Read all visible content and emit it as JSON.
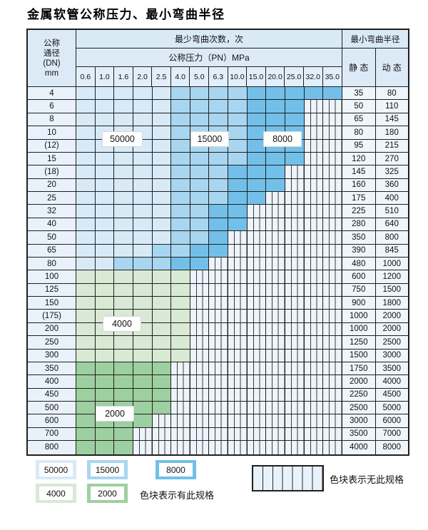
{
  "title": "金属软管公称压力、最小弯曲半径",
  "table": {
    "dn_header_lines": [
      "公称",
      "通径",
      "(DN)",
      "mm"
    ],
    "cycles_header": "最少弯曲次数，次",
    "pressure_header": "公称压力（PN）MPa",
    "pressure_columns": [
      "0.6",
      "1.0",
      "1.6",
      "2.0",
      "2.5",
      "4.0",
      "5.0",
      "6.3",
      "10.0",
      "15.0",
      "20.0",
      "25.0",
      "32.0",
      "35.0"
    ],
    "radius_header": "最小弯曲半径",
    "static_label": "静 态",
    "dynamic_label": "动 态",
    "rows": [
      {
        "dn": "4",
        "cells": "LLLLLMMMMDDDDD",
        "static": "35",
        "dynamic": "80"
      },
      {
        "dn": "6",
        "cells": "LLLLLMMMMDDDXX",
        "static": "50",
        "dynamic": "110"
      },
      {
        "dn": "8",
        "cells": "LLLLLMMMMDDDXX",
        "static": "65",
        "dynamic": "145"
      },
      {
        "dn": "10",
        "cells": "LLLLLMMMMDDDXX",
        "static": "80",
        "dynamic": "180"
      },
      {
        "dn": "(12)",
        "cells": "LLLLLMMMMDDDXX",
        "static": "95",
        "dynamic": "215"
      },
      {
        "dn": "15",
        "cells": "LLLLLMMMMDDDXX",
        "static": "120",
        "dynamic": "270"
      },
      {
        "dn": "(18)",
        "cells": "LLLLLMMMDDDXXX",
        "static": "145",
        "dynamic": "325"
      },
      {
        "dn": "20",
        "cells": "LLLLLMMMDDDXXX",
        "static": "160",
        "dynamic": "360"
      },
      {
        "dn": "25",
        "cells": "LLLLLMMMDDXXXX",
        "static": "175",
        "dynamic": "400"
      },
      {
        "dn": "32",
        "cells": "LLLLLMMDDXXXXX",
        "static": "225",
        "dynamic": "510"
      },
      {
        "dn": "40",
        "cells": "LLLLLMMDDXXXXX",
        "static": "280",
        "dynamic": "640"
      },
      {
        "dn": "50",
        "cells": "LLLLLMMDXXXXXX",
        "static": "350",
        "dynamic": "800"
      },
      {
        "dn": "65",
        "cells": "LLLLMMDDXXXXXX",
        "static": "390",
        "dynamic": "845"
      },
      {
        "dn": "80",
        "cells": "LLMMMDDXXXXXXX",
        "static": "480",
        "dynamic": "1000"
      },
      {
        "dn": "100",
        "cells": "GGGGGGXXXXXXXX",
        "static": "600",
        "dynamic": "1200"
      },
      {
        "dn": "125",
        "cells": "GGGGGGXXXXXXXX",
        "static": "750",
        "dynamic": "1500"
      },
      {
        "dn": "150",
        "cells": "GGGGGGXXXXXXXX",
        "static": "900",
        "dynamic": "1800"
      },
      {
        "dn": "(175)",
        "cells": "GGGGGGXXXXXXXX",
        "static": "1000",
        "dynamic": "2000"
      },
      {
        "dn": "200",
        "cells": "GGGGGGXXXXXXXX",
        "static": "1000",
        "dynamic": "2000"
      },
      {
        "dn": "250",
        "cells": "GGGGGGXXXXXXXX",
        "static": "1250",
        "dynamic": "2500"
      },
      {
        "dn": "300",
        "cells": "GGGGGGXXXXXXXX",
        "static": "1500",
        "dynamic": "3000"
      },
      {
        "dn": "350",
        "cells": "gggggXXXXXXXXX",
        "static": "1750",
        "dynamic": "3500"
      },
      {
        "dn": "400",
        "cells": "gggggXXXXXXXXX",
        "static": "2000",
        "dynamic": "4000"
      },
      {
        "dn": "450",
        "cells": "gggggXXXXXXXXX",
        "static": "2250",
        "dynamic": "4500"
      },
      {
        "dn": "500",
        "cells": "gggggXXXXXXXXX",
        "static": "2500",
        "dynamic": "5000"
      },
      {
        "dn": "600",
        "cells": "ggggXXXXXXXXXX",
        "static": "3000",
        "dynamic": "6000"
      },
      {
        "dn": "700",
        "cells": "gggXXXXXXXXXXX",
        "static": "3500",
        "dynamic": "7000"
      },
      {
        "dn": "800",
        "cells": "gggXXXXXXXXXXX",
        "static": "4000",
        "dynamic": "8000"
      }
    ]
  },
  "overlay_labels": [
    {
      "text": "50000"
    },
    {
      "text": "15000"
    },
    {
      "text": "8000"
    },
    {
      "text": "4000"
    },
    {
      "text": "2000"
    }
  ],
  "legend": {
    "items": [
      {
        "label": "50000",
        "color": "#d8eaf8"
      },
      {
        "label": "15000",
        "color": "#a8d6f0"
      },
      {
        "label": "8000",
        "color": "#72c0e9"
      },
      {
        "label": "4000",
        "color": "#d8e9d4"
      },
      {
        "label": "2000",
        "color": "#9dd0a0"
      }
    ],
    "has_spec_text": "色块表示有此规格",
    "no_spec_text": "色块表示无此规格"
  },
  "colors": {
    "cycles_50000": "#d8eaf8",
    "cycles_15000": "#a8d6f0",
    "cycles_8000": "#72c0e9",
    "cycles_4000": "#d8e9d4",
    "cycles_2000": "#9dd0a0",
    "header_bg": "#d9e9f6",
    "border": "#1f1f1f"
  }
}
